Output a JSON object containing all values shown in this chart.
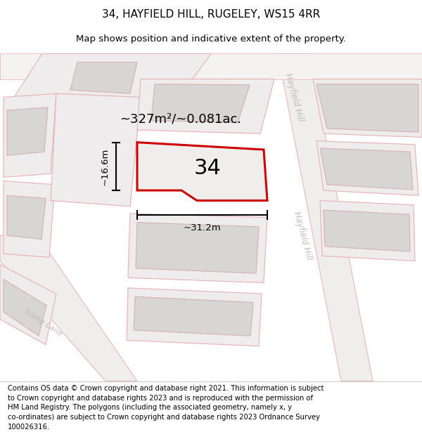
{
  "title_line1": "34, HAYFIELD HILL, RUGELEY, WS15 4RR",
  "title_line2": "Map shows position and indicative extent of the property.",
  "footer_text": "Contains OS data © Crown copyright and database right 2021. This information is subject\nto Crown copyright and database rights 2023 and is reproduced with the permission of\nHM Land Registry. The polygons (including the associated geometry, namely x, y\nco-ordinates) are subject to Crown copyright and database rights 2023 Ordnance Survey\n100026316.",
  "map_bg": "#f7f5f5",
  "plot_fill": "#eeecec",
  "plot_edge": "#e8b0b0",
  "building_fill": "#d8d5d5",
  "building_edge": "#d8b0b0",
  "main_fill": "#f0eeed",
  "main_edge": "#cc0000",
  "road_fill": "#f0eeed",
  "road_edge": "#e8b8b8",
  "area_text": "~327m²/~0.081ac.",
  "label_34": "34",
  "dim_width": "~31.2m",
  "dim_height": "~16.6m",
  "street_hayfield": "Hayfield Hill",
  "street_slang": "Slang Lane",
  "title_fontsize": 11,
  "subtitle_fontsize": 9.5,
  "footer_fontsize": 7.2,
  "street_color": "#c0bcbc",
  "area_fontsize": 13,
  "label_fontsize": 22,
  "dim_fontsize": 9.5
}
